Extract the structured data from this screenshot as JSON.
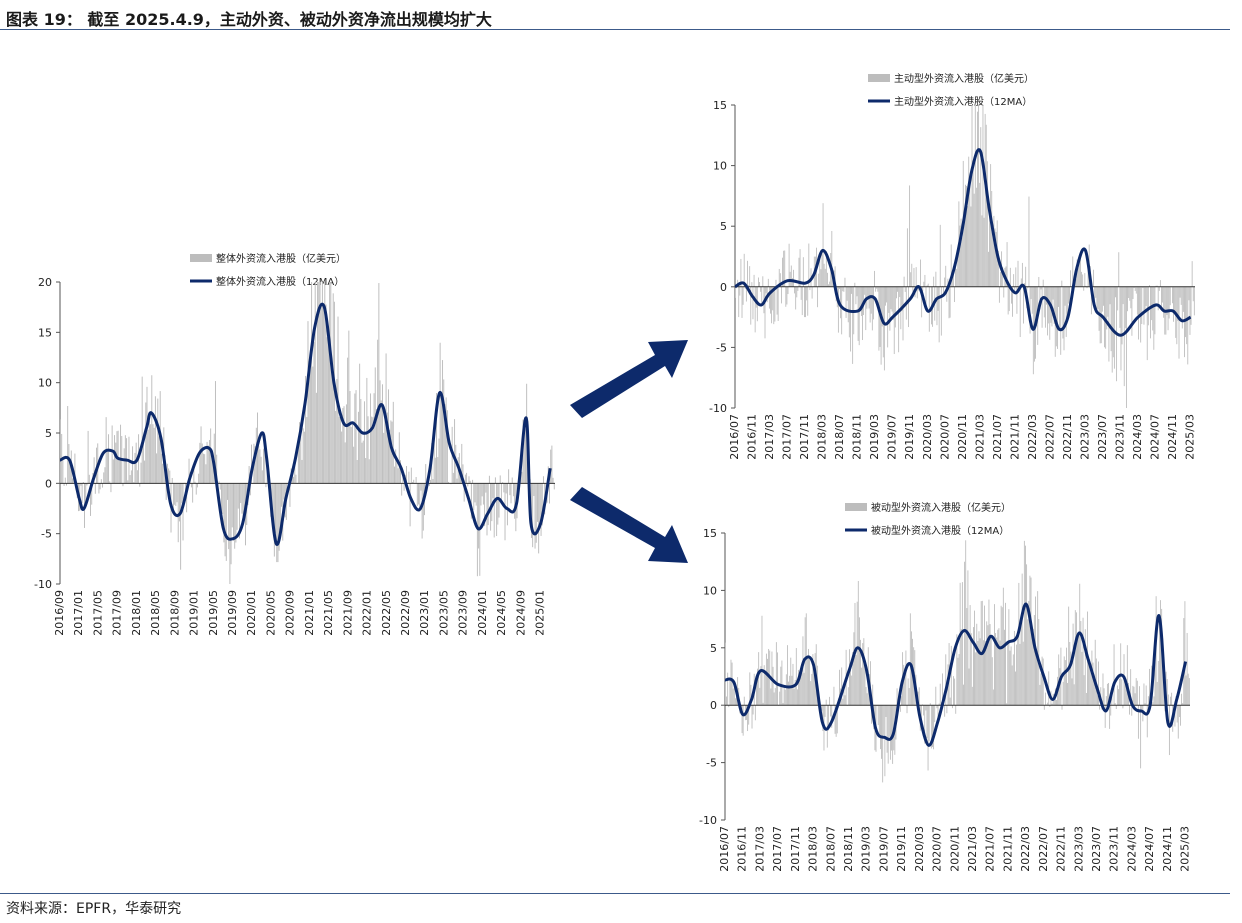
{
  "header": {
    "title": "图表 19：  截至 2025.4.9，主动外资、被动外资净流出规模均扩大"
  },
  "footer": {
    "source": "资料来源：EPFR，华泰研究"
  },
  "colors": {
    "bar": "#bdbdbd",
    "line": "#0d2a6b",
    "arrow": "#0d2a6b",
    "rule": "#3c5a8a"
  },
  "arrows": [
    "arrow-to-active",
    "arrow-to-passive"
  ],
  "chart_data": [
    {
      "id": "overall",
      "type": "bar+line",
      "legend": [
        "整体外资流入港股（亿美元）",
        "整体外资流入港股（12MA）"
      ],
      "ylim": [
        -10,
        20
      ],
      "yticks": [
        -10,
        -5,
        0,
        5,
        10,
        15,
        20
      ],
      "xticks": [
        "2016/09",
        "2017/01",
        "2017/05",
        "2017/09",
        "2018/01",
        "2018/05",
        "2018/09",
        "2019/01",
        "2019/05",
        "2019/09",
        "2020/01",
        "2020/05",
        "2020/09",
        "2021/01",
        "2021/05",
        "2021/09",
        "2022/01",
        "2022/05",
        "2022/09",
        "2023/01",
        "2023/05",
        "2023/09",
        "2024/01",
        "2024/05",
        "2024/09",
        "2025/01"
      ],
      "ma12": [
        {
          "x": "2016/09",
          "y": 2.3
        },
        {
          "x": "2016/11",
          "y": 2.3
        },
        {
          "x": "2017/01",
          "y": -1.5
        },
        {
          "x": "2017/02",
          "y": -2.5
        },
        {
          "x": "2017/04",
          "y": 0.5
        },
        {
          "x": "2017/06",
          "y": 3.0
        },
        {
          "x": "2017/08",
          "y": 3.2
        },
        {
          "x": "2017/09",
          "y": 2.5
        },
        {
          "x": "2017/11",
          "y": 2.3
        },
        {
          "x": "2018/01",
          "y": 2.3
        },
        {
          "x": "2018/03",
          "y": 5.5
        },
        {
          "x": "2018/04",
          "y": 7.0
        },
        {
          "x": "2018/06",
          "y": 4.5
        },
        {
          "x": "2018/08",
          "y": -2.0
        },
        {
          "x": "2018/10",
          "y": -3.0
        },
        {
          "x": "2018/12",
          "y": 0.5
        },
        {
          "x": "2019/02",
          "y": 3.0
        },
        {
          "x": "2019/04",
          "y": 3.5
        },
        {
          "x": "2019/05",
          "y": 2.0
        },
        {
          "x": "2019/07",
          "y": -4.5
        },
        {
          "x": "2019/09",
          "y": -5.5
        },
        {
          "x": "2019/11",
          "y": -4.0
        },
        {
          "x": "2020/01",
          "y": 1.5
        },
        {
          "x": "2020/03",
          "y": 5.0
        },
        {
          "x": "2020/04",
          "y": 2.5
        },
        {
          "x": "2020/06",
          "y": -6.0
        },
        {
          "x": "2020/08",
          "y": -1.5
        },
        {
          "x": "2020/10",
          "y": 2.5
        },
        {
          "x": "2020/12",
          "y": 8.0
        },
        {
          "x": "2021/02",
          "y": 15.5
        },
        {
          "x": "2021/04",
          "y": 17.5
        },
        {
          "x": "2021/06",
          "y": 10.0
        },
        {
          "x": "2021/08",
          "y": 6.0
        },
        {
          "x": "2021/10",
          "y": 6.0
        },
        {
          "x": "2021/12",
          "y": 5.0
        },
        {
          "x": "2022/02",
          "y": 5.5
        },
        {
          "x": "2022/04",
          "y": 7.8
        },
        {
          "x": "2022/06",
          "y": 3.5
        },
        {
          "x": "2022/08",
          "y": 1.5
        },
        {
          "x": "2022/10",
          "y": -1.5
        },
        {
          "x": "2022/12",
          "y": -2.5
        },
        {
          "x": "2023/02",
          "y": 1.5
        },
        {
          "x": "2023/04",
          "y": 9.0
        },
        {
          "x": "2023/06",
          "y": 4.0
        },
        {
          "x": "2023/08",
          "y": 1.5
        },
        {
          "x": "2023/10",
          "y": -1.5
        },
        {
          "x": "2023/12",
          "y": -4.5
        },
        {
          "x": "2024/02",
          "y": -3.0
        },
        {
          "x": "2024/04",
          "y": -1.5
        },
        {
          "x": "2024/06",
          "y": -2.5
        },
        {
          "x": "2024/08",
          "y": -2.0
        },
        {
          "x": "2024/10",
          "y": 6.5
        },
        {
          "x": "2024/11",
          "y": -4.0
        },
        {
          "x": "2025/01",
          "y": -4.0
        },
        {
          "x": "2025/03",
          "y": 1.5
        }
      ]
    },
    {
      "id": "active",
      "type": "bar+line",
      "legend": [
        "主动型外资流入港股（亿美元）",
        "主动型外资流入港股（12MA）"
      ],
      "ylim": [
        -10,
        15
      ],
      "yticks": [
        -10,
        -5,
        0,
        5,
        10,
        15
      ],
      "xticks": [
        "2016/07",
        "2016/11",
        "2017/03",
        "2017/07",
        "2017/11",
        "2018/03",
        "2018/07",
        "2018/11",
        "2019/03",
        "2019/07",
        "2019/11",
        "2020/03",
        "2020/07",
        "2020/11",
        "2021/03",
        "2021/07",
        "2021/11",
        "2022/03",
        "2022/07",
        "2022/11",
        "2023/03",
        "2023/07",
        "2023/11",
        "2024/03",
        "2024/07",
        "2024/11",
        "2025/03"
      ],
      "ma12": [
        {
          "x": "2016/07",
          "y": 0.0
        },
        {
          "x": "2016/09",
          "y": 0.3
        },
        {
          "x": "2016/11",
          "y": -0.8
        },
        {
          "x": "2017/01",
          "y": -1.5
        },
        {
          "x": "2017/03",
          "y": -0.5
        },
        {
          "x": "2017/07",
          "y": 0.5
        },
        {
          "x": "2017/11",
          "y": 0.3
        },
        {
          "x": "2018/01",
          "y": 1.0
        },
        {
          "x": "2018/03",
          "y": 3.0
        },
        {
          "x": "2018/05",
          "y": 1.5
        },
        {
          "x": "2018/07",
          "y": -1.5
        },
        {
          "x": "2018/11",
          "y": -2.0
        },
        {
          "x": "2019/01",
          "y": -1.0
        },
        {
          "x": "2019/03",
          "y": -1.0
        },
        {
          "x": "2019/05",
          "y": -3.0
        },
        {
          "x": "2019/07",
          "y": -2.5
        },
        {
          "x": "2019/11",
          "y": -1.0
        },
        {
          "x": "2020/01",
          "y": 0.0
        },
        {
          "x": "2020/03",
          "y": -2.0
        },
        {
          "x": "2020/05",
          "y": -1.0
        },
        {
          "x": "2020/07",
          "y": -0.5
        },
        {
          "x": "2020/09",
          "y": 1.5
        },
        {
          "x": "2020/11",
          "y": 5.0
        },
        {
          "x": "2021/01",
          "y": 9.5
        },
        {
          "x": "2021/03",
          "y": 11.2
        },
        {
          "x": "2021/05",
          "y": 6.5
        },
        {
          "x": "2021/07",
          "y": 2.5
        },
        {
          "x": "2021/09",
          "y": 0.5
        },
        {
          "x": "2021/11",
          "y": -0.5
        },
        {
          "x": "2022/01",
          "y": 0.0
        },
        {
          "x": "2022/03",
          "y": -3.5
        },
        {
          "x": "2022/05",
          "y": -1.0
        },
        {
          "x": "2022/07",
          "y": -1.5
        },
        {
          "x": "2022/09",
          "y": -3.5
        },
        {
          "x": "2022/11",
          "y": -2.5
        },
        {
          "x": "2023/01",
          "y": 1.5
        },
        {
          "x": "2023/03",
          "y": 3.0
        },
        {
          "x": "2023/05",
          "y": -1.5
        },
        {
          "x": "2023/07",
          "y": -2.5
        },
        {
          "x": "2023/11",
          "y": -4.0
        },
        {
          "x": "2024/03",
          "y": -2.5
        },
        {
          "x": "2024/07",
          "y": -1.5
        },
        {
          "x": "2024/09",
          "y": -2.0
        },
        {
          "x": "2024/11",
          "y": -2.0
        },
        {
          "x": "2025/01",
          "y": -2.8
        },
        {
          "x": "2025/03",
          "y": -2.5
        }
      ]
    },
    {
      "id": "passive",
      "type": "bar+line",
      "legend": [
        "被动型外资流入港股（亿美元）",
        "被动型外资流入港股（12MA）"
      ],
      "ylim": [
        -10,
        15
      ],
      "yticks": [
        -10,
        -5,
        0,
        5,
        10,
        15
      ],
      "xticks": [
        "2016/07",
        "2016/11",
        "2017/03",
        "2017/07",
        "2017/11",
        "2018/03",
        "2018/07",
        "2018/11",
        "2019/03",
        "2019/07",
        "2019/11",
        "2020/03",
        "2020/07",
        "2020/11",
        "2021/03",
        "2021/07",
        "2021/11",
        "2022/03",
        "2022/07",
        "2022/11",
        "2023/03",
        "2023/07",
        "2023/11",
        "2024/03",
        "2024/07",
        "2024/11",
        "2025/03"
      ],
      "ma12": [
        {
          "x": "2016/07",
          "y": 2.2
        },
        {
          "x": "2016/09",
          "y": 2.0
        },
        {
          "x": "2016/11",
          "y": -0.8
        },
        {
          "x": "2017/01",
          "y": 0.5
        },
        {
          "x": "2017/03",
          "y": 3.0
        },
        {
          "x": "2017/07",
          "y": 1.8
        },
        {
          "x": "2017/11",
          "y": 1.8
        },
        {
          "x": "2018/01",
          "y": 4.0
        },
        {
          "x": "2018/03",
          "y": 3.5
        },
        {
          "x": "2018/05",
          "y": -1.5
        },
        {
          "x": "2018/07",
          "y": -1.5
        },
        {
          "x": "2018/11",
          "y": 3.0
        },
        {
          "x": "2019/01",
          "y": 5.0
        },
        {
          "x": "2019/03",
          "y": 3.0
        },
        {
          "x": "2019/05",
          "y": -2.0
        },
        {
          "x": "2019/07",
          "y": -2.8
        },
        {
          "x": "2019/09",
          "y": -2.5
        },
        {
          "x": "2019/11",
          "y": 2.0
        },
        {
          "x": "2020/01",
          "y": 3.5
        },
        {
          "x": "2020/03",
          "y": -1.0
        },
        {
          "x": "2020/05",
          "y": -3.5
        },
        {
          "x": "2020/07",
          "y": -1.5
        },
        {
          "x": "2020/09",
          "y": 1.5
        },
        {
          "x": "2020/11",
          "y": 5.0
        },
        {
          "x": "2021/01",
          "y": 6.5
        },
        {
          "x": "2021/03",
          "y": 5.5
        },
        {
          "x": "2021/05",
          "y": 4.5
        },
        {
          "x": "2021/07",
          "y": 6.0
        },
        {
          "x": "2021/09",
          "y": 5.0
        },
        {
          "x": "2021/11",
          "y": 5.5
        },
        {
          "x": "2022/01",
          "y": 6.0
        },
        {
          "x": "2022/03",
          "y": 8.8
        },
        {
          "x": "2022/05",
          "y": 5.0
        },
        {
          "x": "2022/07",
          "y": 2.5
        },
        {
          "x": "2022/09",
          "y": 0.5
        },
        {
          "x": "2022/11",
          "y": 2.5
        },
        {
          "x": "2023/01",
          "y": 3.5
        },
        {
          "x": "2023/03",
          "y": 6.3
        },
        {
          "x": "2023/05",
          "y": 4.0
        },
        {
          "x": "2023/07",
          "y": 1.5
        },
        {
          "x": "2023/09",
          "y": -0.5
        },
        {
          "x": "2023/11",
          "y": 2.0
        },
        {
          "x": "2024/01",
          "y": 2.5
        },
        {
          "x": "2024/03",
          "y": 0.0
        },
        {
          "x": "2024/05",
          "y": -0.5
        },
        {
          "x": "2024/07",
          "y": 0.0
        },
        {
          "x": "2024/09",
          "y": 7.8
        },
        {
          "x": "2024/11",
          "y": -1.5
        },
        {
          "x": "2025/01",
          "y": 0.5
        },
        {
          "x": "2025/03",
          "y": 3.8
        }
      ]
    }
  ]
}
